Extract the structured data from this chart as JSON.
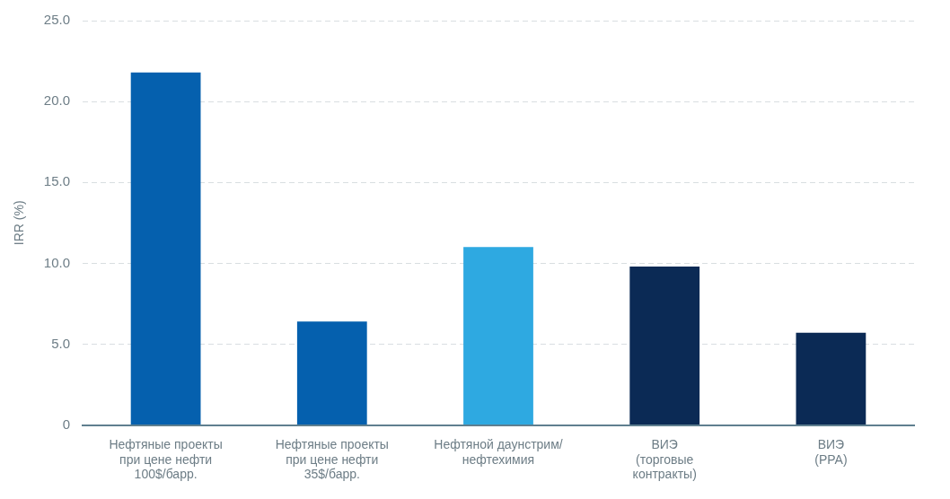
{
  "chart_data": {
    "type": "bar",
    "ylabel": "IRR (%)",
    "categories": [
      "Нефтяные проекты\nпри цене нефти\n100$/барр.",
      "Нефтяные проекты\nпри цене нефти\n35$/барр.",
      "Нефтяной даунстрим/\nнефтехимия",
      "ВИЭ\n(торговые\nконтракты)",
      "ВИЭ\n(PPA)"
    ],
    "values": [
      21.8,
      6.4,
      11.0,
      9.8,
      5.7
    ],
    "colors": [
      "#0560ae",
      "#0560ae",
      "#2ea9e1",
      "#0b2a55",
      "#0b2a55"
    ],
    "ylim": [
      0,
      25
    ],
    "yticks": [
      0,
      {
        "value": 5,
        "label": "5.0"
      },
      {
        "value": 10,
        "label": "10.0"
      },
      {
        "value": 15,
        "label": "15.0"
      },
      {
        "value": 20,
        "label": "20.0"
      },
      {
        "value": 25,
        "label": "25.0"
      }
    ],
    "grid": "y",
    "legend": false
  }
}
